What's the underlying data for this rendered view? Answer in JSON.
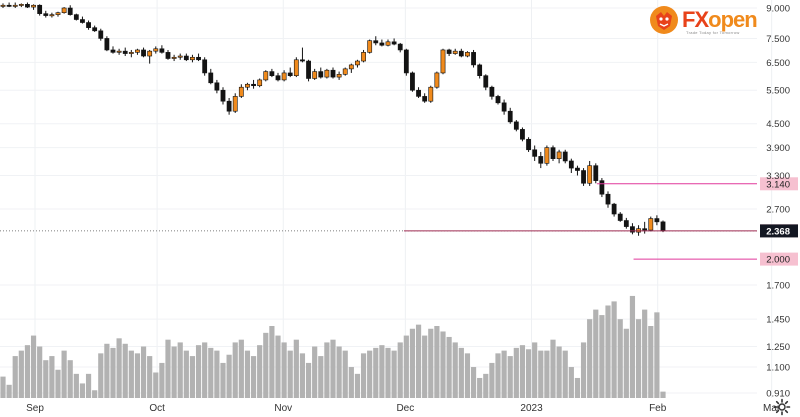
{
  "brand": {
    "fx": "FX",
    "open": "open",
    "tagline": "Trade Today for Tomorrow"
  },
  "chart_data": {
    "type": "candlestick",
    "price_axis": {
      "scale": "log",
      "ticks": [
        "9.000",
        "7.500",
        "6.500",
        "5.500",
        "4.500",
        "3.900",
        "3.300",
        "2.700"
      ]
    },
    "volume_axis": {
      "ticks": [
        "1.700",
        "1.450",
        "1.250",
        "1.100",
        "0.910"
      ]
    },
    "x_ticks": [
      {
        "label": "Sep",
        "day": 0
      },
      {
        "label": "Oct",
        "day": 30
      },
      {
        "label": "Nov",
        "day": 61
      },
      {
        "label": "Dec",
        "day": 91
      },
      {
        "label": "2023",
        "day": 122
      },
      {
        "label": "Feb",
        "day": 153
      },
      {
        "label": "Mar",
        "day": 181
      }
    ],
    "grid": true,
    "colors": {
      "up": "#f08a1c",
      "down": "#131313",
      "volume": "#b2b2b2",
      "level": "#e0389b",
      "label_bg": "#f6c0d0"
    },
    "candles": [
      [
        9.1,
        9.25,
        9.0,
        9.15
      ],
      [
        9.15,
        9.3,
        9.05,
        9.1
      ],
      [
        9.1,
        9.3,
        9.0,
        9.15
      ],
      [
        9.15,
        9.25,
        9.05,
        9.2
      ],
      [
        9.2,
        9.3,
        9.0,
        9.05
      ],
      [
        9.05,
        9.2,
        8.9,
        9.15
      ],
      [
        9.15,
        9.2,
        8.6,
        8.7
      ],
      [
        8.7,
        8.85,
        8.5,
        8.6
      ],
      [
        8.6,
        8.75,
        8.5,
        8.65
      ],
      [
        8.65,
        8.8,
        8.55,
        8.75
      ],
      [
        8.75,
        9.05,
        8.7,
        9.0
      ],
      [
        9.0,
        9.15,
        8.6,
        8.65
      ],
      [
        8.65,
        8.7,
        8.35,
        8.4
      ],
      [
        8.4,
        8.55,
        8.2,
        8.25
      ],
      [
        8.25,
        8.35,
        7.9,
        8.0
      ],
      [
        8.0,
        8.1,
        7.8,
        7.85
      ],
      [
        7.85,
        7.95,
        7.4,
        7.5
      ],
      [
        7.5,
        7.6,
        6.95,
        7.0
      ],
      [
        7.0,
        7.15,
        6.85,
        6.9
      ],
      [
        6.9,
        7.05,
        6.8,
        6.95
      ],
      [
        6.95,
        7.1,
        6.75,
        6.85
      ],
      [
        6.85,
        7.0,
        6.7,
        6.9
      ],
      [
        6.9,
        7.05,
        6.8,
        7.0
      ],
      [
        7.0,
        7.1,
        6.7,
        6.75
      ],
      [
        6.75,
        7.0,
        6.45,
        6.95
      ],
      [
        6.95,
        7.15,
        6.85,
        7.05
      ],
      [
        7.05,
        7.2,
        6.85,
        6.9
      ],
      [
        6.9,
        7.0,
        6.6,
        6.65
      ],
      [
        6.65,
        6.8,
        6.55,
        6.7
      ],
      [
        6.7,
        6.85,
        6.6,
        6.75
      ],
      [
        6.75,
        6.85,
        6.55,
        6.6
      ],
      [
        6.6,
        6.8,
        6.5,
        6.7
      ],
      [
        6.7,
        6.85,
        6.55,
        6.6
      ],
      [
        6.6,
        6.7,
        6.0,
        6.1
      ],
      [
        6.1,
        6.25,
        5.7,
        5.75
      ],
      [
        5.75,
        5.85,
        5.4,
        5.5
      ],
      [
        5.5,
        5.6,
        5.05,
        5.15
      ],
      [
        5.15,
        5.25,
        4.75,
        4.85
      ],
      [
        4.85,
        5.4,
        4.8,
        5.3
      ],
      [
        5.3,
        5.7,
        5.25,
        5.6
      ],
      [
        5.6,
        5.75,
        5.5,
        5.7
      ],
      [
        5.7,
        5.85,
        5.55,
        5.65
      ],
      [
        5.65,
        5.9,
        5.6,
        5.85
      ],
      [
        5.85,
        6.2,
        5.8,
        6.15
      ],
      [
        6.15,
        6.25,
        5.95,
        6.0
      ],
      [
        6.0,
        6.1,
        5.8,
        5.85
      ],
      [
        5.85,
        6.2,
        5.8,
        6.1
      ],
      [
        6.1,
        6.3,
        5.95,
        6.0
      ],
      [
        6.0,
        6.7,
        5.95,
        6.6
      ],
      [
        6.6,
        7.1,
        6.5,
        6.55
      ],
      [
        6.55,
        6.6,
        5.8,
        5.9
      ],
      [
        5.9,
        6.25,
        5.85,
        6.15
      ],
      [
        6.15,
        6.3,
        5.9,
        5.95
      ],
      [
        5.95,
        6.25,
        5.9,
        6.2
      ],
      [
        6.2,
        6.3,
        5.9,
        5.95
      ],
      [
        5.95,
        6.15,
        5.85,
        6.05
      ],
      [
        6.05,
        6.3,
        6.0,
        6.25
      ],
      [
        6.25,
        6.45,
        6.1,
        6.4
      ],
      [
        6.4,
        6.6,
        6.3,
        6.55
      ],
      [
        6.55,
        7.0,
        6.5,
        6.9
      ],
      [
        6.9,
        7.45,
        6.85,
        7.4
      ],
      [
        7.4,
        7.6,
        7.2,
        7.3
      ],
      [
        7.3,
        7.45,
        7.15,
        7.2
      ],
      [
        7.2,
        7.45,
        7.15,
        7.35
      ],
      [
        7.35,
        7.5,
        7.2,
        7.25
      ],
      [
        7.25,
        7.3,
        6.9,
        7.0
      ],
      [
        7.0,
        7.05,
        6.0,
        6.1
      ],
      [
        6.1,
        6.15,
        5.45,
        5.5
      ],
      [
        5.5,
        5.6,
        5.25,
        5.3
      ],
      [
        5.3,
        5.4,
        5.1,
        5.15
      ],
      [
        5.15,
        5.65,
        5.1,
        5.6
      ],
      [
        5.6,
        6.15,
        5.55,
        6.1
      ],
      [
        6.1,
        7.05,
        6.05,
        7.0
      ],
      [
        7.0,
        7.05,
        6.75,
        6.85
      ],
      [
        6.85,
        7.05,
        6.8,
        6.95
      ],
      [
        6.95,
        7.05,
        6.7,
        6.75
      ],
      [
        6.75,
        6.95,
        6.7,
        6.9
      ],
      [
        6.9,
        7.0,
        6.3,
        6.4
      ],
      [
        6.4,
        6.45,
        5.9,
        6.0
      ],
      [
        6.0,
        6.05,
        5.5,
        5.6
      ],
      [
        5.6,
        5.65,
        5.2,
        5.3
      ],
      [
        5.3,
        5.35,
        5.05,
        5.1
      ],
      [
        5.1,
        5.2,
        4.75,
        4.85
      ],
      [
        4.85,
        4.95,
        4.5,
        4.55
      ],
      [
        4.55,
        4.6,
        4.3,
        4.35
      ],
      [
        4.35,
        4.4,
        4.05,
        4.1
      ],
      [
        4.1,
        4.15,
        3.8,
        3.85
      ],
      [
        3.85,
        3.95,
        3.6,
        3.7
      ],
      [
        3.7,
        3.8,
        3.45,
        3.55
      ],
      [
        3.55,
        3.95,
        3.5,
        3.9
      ],
      [
        3.9,
        3.95,
        3.6,
        3.65
      ],
      [
        3.65,
        3.85,
        3.55,
        3.8
      ],
      [
        3.8,
        3.85,
        3.55,
        3.6
      ],
      [
        3.6,
        3.65,
        3.35,
        3.45
      ],
      [
        3.45,
        3.5,
        3.3,
        3.4
      ],
      [
        3.4,
        3.45,
        3.1,
        3.15
      ],
      [
        3.15,
        3.6,
        3.1,
        3.5
      ],
      [
        3.5,
        3.55,
        3.15,
        3.2
      ],
      [
        3.2,
        3.25,
        2.9,
        2.95
      ],
      [
        2.95,
        3.0,
        2.72,
        2.78
      ],
      [
        2.78,
        2.8,
        2.58,
        2.62
      ],
      [
        2.62,
        2.65,
        2.5,
        2.52
      ],
      [
        2.52,
        2.56,
        2.4,
        2.43
      ],
      [
        2.43,
        2.48,
        2.32,
        2.35
      ],
      [
        2.35,
        2.45,
        2.3,
        2.4
      ],
      [
        2.4,
        2.5,
        2.33,
        2.38
      ],
      [
        2.38,
        2.58,
        2.36,
        2.55
      ],
      [
        2.55,
        2.6,
        2.45,
        2.5
      ],
      [
        2.5,
        2.52,
        2.35,
        2.37
      ]
    ],
    "volumes": [
      1.03,
      0.97,
      1.18,
      1.22,
      1.26,
      1.33,
      1.25,
      1.15,
      1.18,
      1.08,
      1.22,
      1.15,
      1.05,
      0.98,
      1.05,
      0.93,
      1.2,
      1.27,
      1.24,
      1.31,
      1.27,
      1.22,
      1.2,
      1.25,
      1.18,
      1.06,
      1.13,
      1.3,
      1.25,
      1.28,
      1.22,
      1.18,
      1.26,
      1.28,
      1.24,
      1.22,
      1.13,
      1.19,
      1.28,
      1.3,
      1.22,
      1.18,
      1.26,
      1.35,
      1.4,
      1.33,
      1.28,
      1.22,
      1.3,
      1.2,
      1.13,
      1.25,
      1.18,
      1.28,
      1.3,
      1.25,
      1.22,
      1.1,
      1.05,
      1.2,
      1.22,
      1.24,
      1.26,
      1.24,
      1.22,
      1.28,
      1.33,
      1.38,
      1.41,
      1.33,
      1.38,
      1.4,
      1.36,
      1.32,
      1.28,
      1.24,
      1.2,
      1.1,
      1.02,
      1.05,
      1.13,
      1.2,
      1.22,
      1.18,
      1.24,
      1.26,
      1.23,
      1.28,
      1.22,
      1.22,
      1.3,
      1.25,
      1.22,
      1.1,
      1.02,
      1.28,
      1.45,
      1.52,
      1.48,
      1.55,
      1.58,
      1.45,
      1.38,
      1.62,
      1.45,
      1.52,
      1.4,
      1.5,
      0.92
    ],
    "levels": [
      {
        "value": 3.14,
        "label": "3.140",
        "x_start_index": 98
      },
      {
        "value": 2.37,
        "label": "2.370",
        "x_start_index": null
      },
      {
        "value": 2.0,
        "label": "2.000",
        "x_start_index": 104
      }
    ],
    "last_price": {
      "value": 2.368,
      "label": "2.368"
    }
  }
}
